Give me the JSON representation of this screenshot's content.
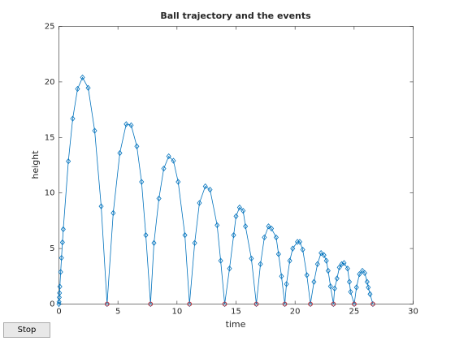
{
  "chart_data": {
    "type": "line",
    "title": "Ball trajectory and the events",
    "xlabel": "time",
    "ylabel": "height",
    "xlim": [
      0,
      30
    ],
    "ylim": [
      0,
      25
    ],
    "xticks": [
      0,
      5,
      10,
      15,
      20,
      25,
      30
    ],
    "yticks": [
      0,
      5,
      10,
      15,
      20,
      25
    ],
    "series": [
      {
        "color": "#0072bd",
        "marker": "diamond",
        "x": [
          0,
          0.01,
          0.03,
          0.05,
          0.08,
          0.15,
          0.22,
          0.3,
          0.37,
          0.8,
          1.17,
          1.58,
          2.0,
          2.48,
          3.03,
          3.58,
          4.08,
          4.6,
          5.16,
          5.7,
          6.12,
          6.6,
          7.0,
          7.36,
          7.76,
          8.05,
          8.47,
          8.88,
          9.3,
          9.7,
          10.1,
          10.67,
          11.06,
          11.5,
          11.9,
          12.4,
          12.8,
          13.4,
          13.7,
          14.04,
          14.45,
          14.8,
          15.0,
          15.3,
          15.6,
          15.8,
          16.3,
          16.72,
          17.07,
          17.4,
          17.75,
          18.0,
          18.4,
          18.6,
          18.85,
          19.13,
          19.27,
          19.55,
          19.8,
          20.2,
          20.4,
          20.65,
          21.0,
          21.3,
          21.6,
          21.9,
          22.2,
          22.45,
          22.65,
          22.8,
          23.0,
          23.25,
          23.35,
          23.55,
          23.75,
          23.95,
          24.15,
          24.45,
          24.6,
          24.7,
          25.01,
          25.2,
          25.45,
          25.7,
          25.9,
          26.1,
          26.2,
          26.35,
          26.59
        ],
        "values": [
          0,
          0.2,
          0.6,
          1.0,
          1.57,
          2.89,
          4.16,
          5.56,
          6.73,
          12.86,
          16.69,
          19.37,
          20.4,
          19.46,
          15.61,
          8.8,
          0,
          8.2,
          13.6,
          16.2,
          16.1,
          14.2,
          11.0,
          6.2,
          0,
          5.5,
          9.5,
          12.2,
          13.3,
          12.9,
          11.0,
          6.2,
          0,
          5.5,
          9.1,
          10.6,
          10.3,
          7.1,
          3.9,
          0,
          3.2,
          6.2,
          7.9,
          8.7,
          8.4,
          7.0,
          4.1,
          0,
          3.6,
          6.0,
          7.0,
          6.8,
          6.0,
          4.5,
          2.5,
          0,
          1.8,
          3.9,
          5.0,
          5.6,
          5.6,
          4.9,
          2.6,
          0,
          2.0,
          3.6,
          4.6,
          4.4,
          3.9,
          3.0,
          1.6,
          0,
          1.4,
          2.3,
          3.3,
          3.6,
          3.7,
          3.2,
          2.0,
          1.1,
          0,
          1.5,
          2.7,
          3.0,
          2.8,
          2.0,
          1.5,
          0.9,
          0
        ]
      },
      {
        "color": "#e03030",
        "marker": "circle",
        "x": [
          4.08,
          7.76,
          11.06,
          14.04,
          16.72,
          19.13,
          21.3,
          23.25,
          25.01,
          26.59
        ],
        "values": [
          0,
          0,
          0,
          0,
          0,
          0,
          0,
          0,
          0,
          0
        ]
      }
    ]
  },
  "button": "Stop"
}
